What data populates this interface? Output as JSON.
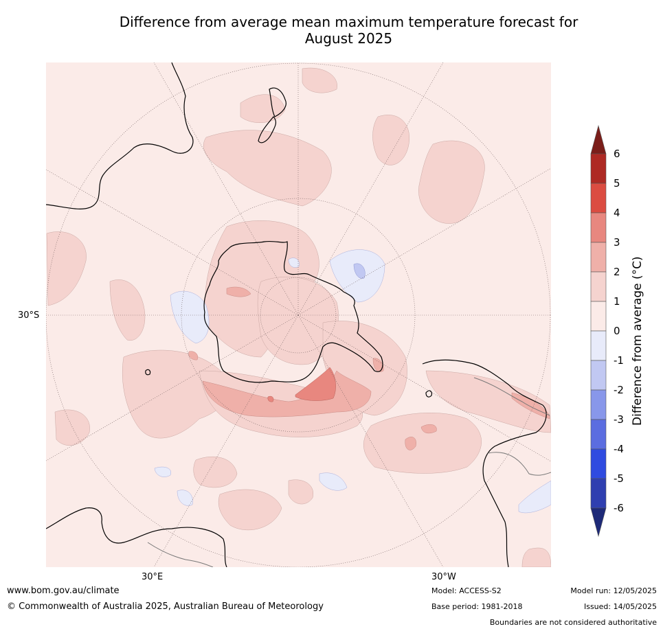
{
  "title_line1": "Difference from average mean maximum temperature forecast for",
  "title_line2": "August 2025",
  "map_labels": {
    "lat": "30°S",
    "lon_left": "30°E",
    "lon_right": "30°W"
  },
  "colorbar": {
    "title": "Difference from average (°C)",
    "ticks": [
      "6",
      "5",
      "4",
      "3",
      "2",
      "1",
      "0",
      "-1",
      "-2",
      "-3",
      "-4",
      "-5",
      "-6"
    ],
    "colors": {
      "over": "#7b1e1a",
      "5_6": "#ae2a24",
      "4_5": "#db4c41",
      "3_4": "#e8877f",
      "2_3": "#efb0a9",
      "1_2": "#f5d3cf",
      "0_1": "#fbebe8",
      "m1_0": "#e8ebfa",
      "m2_m1": "#c1c8f2",
      "m3_m2": "#8897ea",
      "m4_m3": "#5b6de0",
      "m5_m4": "#2f4be0",
      "m6_m5": "#2f3fb0",
      "under": "#1e2a78"
    }
  },
  "footer": {
    "site": "www.bom.gov.au/climate",
    "copyright": "© Commonwealth of Australia 2025, Australian Bureau of Meteorology",
    "model": "Model: ACCESS-S2",
    "base_period": "Base period: 1981-2018",
    "model_run": "Model run: 12/05/2025",
    "issued": "Issued: 14/05/2025",
    "disclaimer": "Boundaries are not considered authoritative"
  }
}
